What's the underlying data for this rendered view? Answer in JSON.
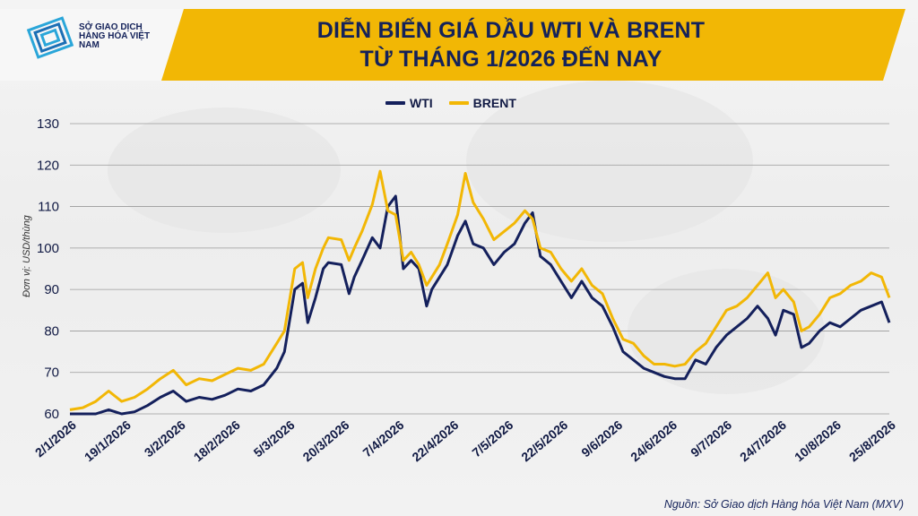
{
  "header": {
    "logo_text": "SỞ GIAO DỊCH HÀNG HÓA VIỆT NAM",
    "title_line1": "DIỄN BIẾN GIÁ DẦU WTI VÀ BRENT",
    "title_line2": "TỪ THÁNG 1/2026 ĐẾN NAY"
  },
  "source": "Nguồn: Sở Giao dịch Hàng hóa Việt Nam (MXV)",
  "colors": {
    "wti": "#14205c",
    "brent": "#f2b705",
    "banner": "#f2b705",
    "title": "#14225a"
  },
  "chart_data": {
    "type": "line",
    "title": "DIỄN BIẾN GIÁ DẦU WTI VÀ BRENT TỪ THÁNG 1/2026 ĐẾN NAY",
    "ylabel": "Đơn vị: USD/thùng",
    "ylim": [
      60,
      130
    ],
    "yticks": [
      60,
      70,
      80,
      90,
      100,
      110,
      120,
      130
    ],
    "grid": true,
    "legend_position": "top-center",
    "x_tick_labels": [
      "2/1/2026",
      "19/1/2026",
      "3/2/2026",
      "18/2/2026",
      "5/3/2026",
      "20/3/2026",
      "7/4/2026",
      "22/4/2026",
      "7/5/2026",
      "22/5/2026",
      "9/6/2026",
      "24/6/2026",
      "9/7/2026",
      "24/7/2026",
      "10/8/2026",
      "25/8/2026"
    ],
    "series": [
      {
        "name": "WTI",
        "color": "#14205c",
        "points": [
          [
            0,
            57.5
          ],
          [
            0.5,
            58
          ],
          [
            1,
            59.5
          ],
          [
            1.5,
            61
          ],
          [
            2,
            59.5
          ],
          [
            2.5,
            60.5
          ],
          [
            3,
            62
          ],
          [
            3.5,
            64
          ],
          [
            4,
            65.5
          ],
          [
            4.5,
            63
          ],
          [
            5,
            64
          ],
          [
            5.5,
            63.5
          ],
          [
            6,
            64.5
          ],
          [
            6.5,
            66
          ],
          [
            7,
            65.5
          ],
          [
            7.5,
            67
          ],
          [
            8,
            71
          ],
          [
            8.3,
            75
          ],
          [
            8.7,
            90
          ],
          [
            9,
            91.5
          ],
          [
            9.2,
            82
          ],
          [
            9.5,
            88
          ],
          [
            9.8,
            95
          ],
          [
            10,
            96.5
          ],
          [
            10.5,
            96
          ],
          [
            10.8,
            89
          ],
          [
            11,
            93
          ],
          [
            11.3,
            97
          ],
          [
            11.7,
            102.5
          ],
          [
            12,
            100
          ],
          [
            12.3,
            110
          ],
          [
            12.6,
            112.5
          ],
          [
            12.9,
            95
          ],
          [
            13.2,
            97
          ],
          [
            13.5,
            95
          ],
          [
            13.8,
            86
          ],
          [
            14,
            90
          ],
          [
            14.3,
            93
          ],
          [
            14.6,
            96
          ],
          [
            15,
            103
          ],
          [
            15.3,
            106.5
          ],
          [
            15.6,
            101
          ],
          [
            16,
            100
          ],
          [
            16.4,
            96
          ],
          [
            16.8,
            99
          ],
          [
            17.2,
            101
          ],
          [
            17.6,
            106
          ],
          [
            17.9,
            108.5
          ],
          [
            18.2,
            98
          ],
          [
            18.6,
            96
          ],
          [
            19,
            92
          ],
          [
            19.4,
            88
          ],
          [
            19.8,
            92
          ],
          [
            20.2,
            88
          ],
          [
            20.6,
            86
          ],
          [
            21,
            81
          ],
          [
            21.4,
            75
          ],
          [
            21.8,
            73
          ],
          [
            22.2,
            71
          ],
          [
            22.6,
            70
          ],
          [
            23,
            69
          ],
          [
            23.4,
            68.5
          ],
          [
            23.8,
            68.5
          ],
          [
            24.2,
            73
          ],
          [
            24.6,
            72
          ],
          [
            25,
            76
          ],
          [
            25.4,
            79
          ],
          [
            25.8,
            81
          ],
          [
            26.2,
            83
          ],
          [
            26.6,
            86
          ],
          [
            27,
            83
          ],
          [
            27.3,
            79
          ],
          [
            27.6,
            85
          ],
          [
            28,
            84
          ],
          [
            28.3,
            76
          ],
          [
            28.6,
            77
          ],
          [
            29,
            80
          ],
          [
            29.4,
            82
          ],
          [
            29.8,
            81
          ],
          [
            30.2,
            83
          ],
          [
            30.6,
            85
          ],
          [
            31,
            86
          ],
          [
            31.4,
            87
          ],
          [
            31.7,
            82
          ]
        ]
      },
      {
        "name": "BRENT",
        "color": "#f2b705",
        "points": [
          [
            0,
            61
          ],
          [
            0.5,
            61.5
          ],
          [
            1,
            63
          ],
          [
            1.5,
            65.5
          ],
          [
            2,
            63
          ],
          [
            2.5,
            64
          ],
          [
            3,
            66
          ],
          [
            3.5,
            68.5
          ],
          [
            4,
            70.5
          ],
          [
            4.5,
            67
          ],
          [
            5,
            68.5
          ],
          [
            5.5,
            68
          ],
          [
            6,
            69.5
          ],
          [
            6.5,
            71
          ],
          [
            7,
            70.5
          ],
          [
            7.5,
            72
          ],
          [
            8,
            77
          ],
          [
            8.3,
            80
          ],
          [
            8.7,
            95
          ],
          [
            9,
            96.5
          ],
          [
            9.2,
            88
          ],
          [
            9.5,
            95
          ],
          [
            9.8,
            100
          ],
          [
            10,
            102.5
          ],
          [
            10.5,
            102
          ],
          [
            10.8,
            97
          ],
          [
            11,
            100
          ],
          [
            11.3,
            104
          ],
          [
            11.7,
            110.5
          ],
          [
            12,
            118.5
          ],
          [
            12.3,
            109
          ],
          [
            12.6,
            108
          ],
          [
            12.9,
            97
          ],
          [
            13.2,
            99
          ],
          [
            13.5,
            96
          ],
          [
            13.8,
            91
          ],
          [
            14,
            93
          ],
          [
            14.3,
            96
          ],
          [
            14.6,
            101
          ],
          [
            15,
            108
          ],
          [
            15.3,
            118
          ],
          [
            15.6,
            111
          ],
          [
            16,
            107
          ],
          [
            16.4,
            102
          ],
          [
            16.8,
            104
          ],
          [
            17.2,
            106
          ],
          [
            17.6,
            109
          ],
          [
            17.9,
            107
          ],
          [
            18.2,
            100
          ],
          [
            18.6,
            99
          ],
          [
            19,
            95
          ],
          [
            19.4,
            92
          ],
          [
            19.8,
            95
          ],
          [
            20.2,
            91
          ],
          [
            20.6,
            89
          ],
          [
            21,
            83
          ],
          [
            21.4,
            78
          ],
          [
            21.8,
            77
          ],
          [
            22.2,
            74
          ],
          [
            22.6,
            72
          ],
          [
            23,
            72
          ],
          [
            23.4,
            71.5
          ],
          [
            23.8,
            72
          ],
          [
            24.2,
            75
          ],
          [
            24.6,
            77
          ],
          [
            25,
            81
          ],
          [
            25.4,
            85
          ],
          [
            25.8,
            86
          ],
          [
            26.2,
            88
          ],
          [
            26.6,
            91
          ],
          [
            27,
            94
          ],
          [
            27.3,
            88
          ],
          [
            27.6,
            90
          ],
          [
            28,
            87
          ],
          [
            28.3,
            80
          ],
          [
            28.6,
            81
          ],
          [
            29,
            84
          ],
          [
            29.4,
            88
          ],
          [
            29.8,
            89
          ],
          [
            30.2,
            91
          ],
          [
            30.6,
            92
          ],
          [
            31,
            94
          ],
          [
            31.4,
            93
          ],
          [
            31.7,
            88
          ]
        ]
      }
    ]
  }
}
